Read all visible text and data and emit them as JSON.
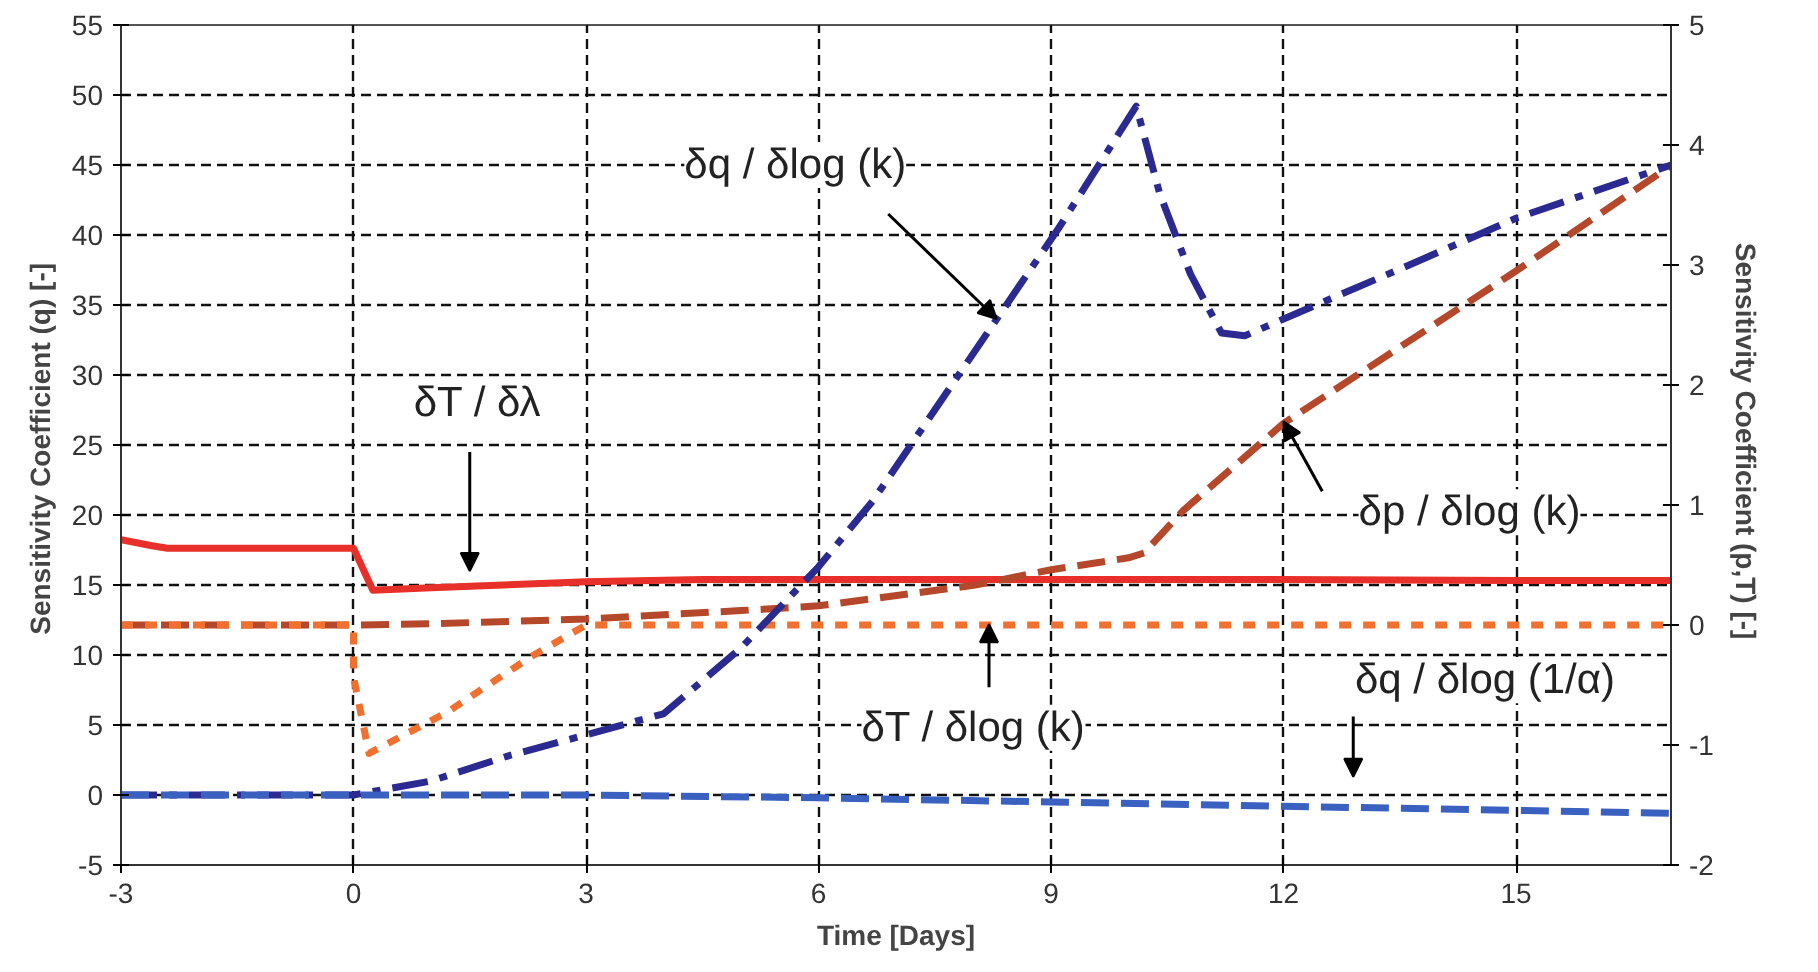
{
  "chart_data": {
    "type": "line",
    "xlabel": "Time [Days]",
    "ylabel": "Sensitivity Coefficient (q)  [-]",
    "y2label": "Sensitivity Coefficient (p,T)  [-]",
    "xlim": [
      -3,
      17
    ],
    "xticks": [
      -3,
      0,
      3,
      6,
      9,
      12,
      15
    ],
    "ylim": [
      -5,
      55
    ],
    "yticks": [
      -5,
      0,
      5,
      10,
      15,
      20,
      25,
      30,
      35,
      40,
      45,
      50,
      55
    ],
    "y2lim": [
      -2,
      5
    ],
    "y2ticks": [
      -2,
      -1,
      0,
      1,
      2,
      3,
      4,
      5
    ],
    "grid": true,
    "marker": "none",
    "series": [
      {
        "color": "#e8302a",
        "line_style": "solid",
        "axis": "y2",
        "x": [
          -3,
          -2.6,
          -2.4,
          0,
          0.25,
          1,
          3,
          4.5,
          6,
          9,
          12,
          15,
          17
        ],
        "values": [
          0.71,
          0.66,
          0.64,
          0.64,
          0.29,
          0.31,
          0.36,
          0.38,
          0.38,
          0.38,
          0.38,
          0.37,
          0.37
        ]
      },
      {
        "color": "#b5482a",
        "line_style": "dashed",
        "axis": "y2",
        "x": [
          -3,
          0,
          1,
          3,
          5,
          6,
          8,
          9,
          10,
          10.2,
          10.7,
          12,
          15,
          17
        ],
        "values": [
          0,
          0,
          0.01,
          0.05,
          0.12,
          0.16,
          0.33,
          0.46,
          0.56,
          0.6,
          0.95,
          1.68,
          2.95,
          3.83
        ]
      },
      {
        "color": "#f07030",
        "line_style": "dotted",
        "axis": "y2",
        "x": [
          -3,
          0,
          0,
          0.2,
          1.2,
          2.3,
          3,
          17
        ],
        "values": [
          0,
          0,
          -0.43,
          -1.07,
          -0.73,
          -0.26,
          0,
          0
        ]
      },
      {
        "color": "#2a2a90",
        "line_style": "dashdot",
        "x": [
          -3,
          0,
          1,
          2,
          3,
          4,
          5,
          6,
          6.7,
          8.3,
          9.1,
          10.1,
          10.4,
          10.8,
          11.2,
          11.5,
          12,
          13.6,
          15,
          17
        ],
        "values": [
          0,
          0,
          1,
          2.8,
          4.3,
          5.8,
          10.5,
          16.3,
          21,
          34,
          40.5,
          49.2,
          43,
          37.2,
          33,
          32.8,
          34,
          37.8,
          41.2,
          45
        ]
      },
      {
        "color": "#3a60c0",
        "line_style": "dashed",
        "x": [
          -3,
          0,
          3,
          6,
          9,
          12,
          15,
          17
        ],
        "values": [
          0,
          0,
          0,
          -0.2,
          -0.5,
          -0.8,
          -1.1,
          -1.3
        ]
      }
    ],
    "annotations": [
      {
        "text": "δq / δlog (k)",
        "x": 8.3,
        "y": 34
      },
      "δT / δλ",
      {
        "text": "δp / δlog (k)",
        "x": 12,
        "y": 26.7
      },
      {
        "text": "δT / δlog (k)",
        "x": 8.2,
        "y": 12.2
      },
      "δq / δlog (1/α)"
    ]
  }
}
